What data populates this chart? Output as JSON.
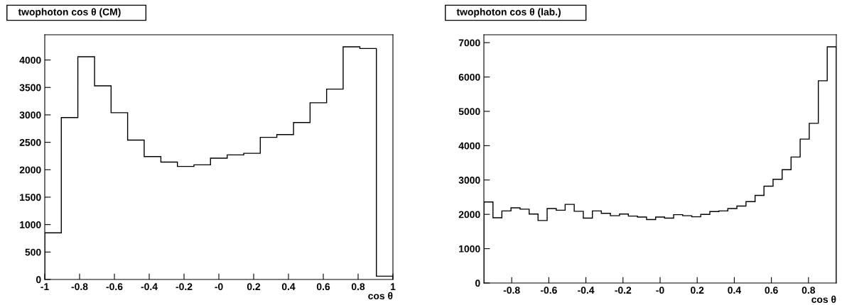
{
  "chart_data": [
    {
      "type": "histogram",
      "title": "twophoton cos θ (CM)",
      "xlabel": "cos θ",
      "color": "#000000",
      "bins": [
        -1,
        -0.905,
        -0.81,
        -0.714,
        -0.619,
        -0.524,
        -0.429,
        -0.333,
        -0.238,
        -0.143,
        -0.048,
        0.048,
        0.143,
        0.238,
        0.333,
        0.429,
        0.524,
        0.619,
        0.714,
        0.81,
        0.905,
        1
      ],
      "values": [
        850,
        2950,
        4060,
        3530,
        3040,
        2540,
        2240,
        2140,
        2060,
        2090,
        2210,
        2270,
        2300,
        2590,
        2640,
        2860,
        3220,
        3470,
        4240,
        4210,
        60
      ],
      "xlim": [
        -1,
        1
      ],
      "xticks": [
        -1,
        -0.8,
        -0.6,
        -0.4,
        -0.2,
        {
          "value": 0,
          "label": "-0"
        },
        0.2,
        0.4,
        0.6,
        0.8,
        1
      ],
      "ylim": [
        0,
        4460
      ],
      "yticks": [
        0,
        500,
        1000,
        1500,
        2000,
        2500,
        3000,
        3500,
        4000
      ],
      "grid": false,
      "legend": false
    },
    {
      "type": "histogram",
      "title": "twophoton cos θ (lab.)",
      "xlabel": "cos θ",
      "color": "#000000",
      "bins": [
        -0.95,
        -0.901,
        -0.853,
        -0.804,
        -0.755,
        -0.706,
        -0.658,
        -0.609,
        -0.56,
        -0.512,
        -0.463,
        -0.414,
        -0.365,
        -0.317,
        -0.268,
        -0.219,
        -0.171,
        -0.122,
        -0.073,
        -0.024,
        0.024,
        0.073,
        0.122,
        0.171,
        0.219,
        0.268,
        0.317,
        0.365,
        0.414,
        0.463,
        0.512,
        0.56,
        0.609,
        0.658,
        0.706,
        0.755,
        0.804,
        0.853,
        0.901,
        0.95
      ],
      "values": [
        2360,
        1900,
        2100,
        2190,
        2150,
        2010,
        1820,
        2170,
        2120,
        2290,
        2090,
        1890,
        2100,
        2030,
        1960,
        2010,
        1950,
        1920,
        1850,
        1920,
        1890,
        1990,
        1960,
        1930,
        2000,
        2080,
        2100,
        2170,
        2240,
        2370,
        2550,
        2820,
        3020,
        3300,
        3670,
        4190,
        4650,
        5890,
        6880
      ],
      "xlim": [
        -0.95,
        0.95
      ],
      "xticks": [
        -0.8,
        -0.6,
        -0.4,
        -0.2,
        {
          "value": 0,
          "label": "-0"
        },
        0.2,
        0.4,
        0.6,
        0.8
      ],
      "ylim": [
        0,
        7230
      ],
      "yticks": [
        0,
        1000,
        2000,
        3000,
        4000,
        5000,
        6000,
        7000
      ],
      "grid": false,
      "legend": false
    }
  ]
}
